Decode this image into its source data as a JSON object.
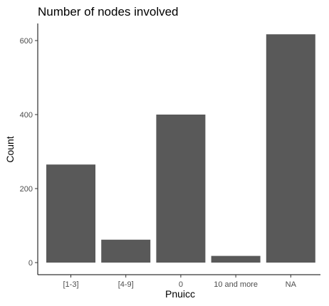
{
  "chart_data": {
    "type": "bar",
    "title": "Number of nodes involved",
    "xlabel": "Pnuicc",
    "ylabel": "Count",
    "categories": [
      "[1-3]",
      "[4-9]",
      "0",
      "10 and more",
      "NA"
    ],
    "values": [
      265,
      62,
      400,
      18,
      617
    ],
    "ylim": [
      0,
      645
    ],
    "yticks": [
      0,
      200,
      400,
      600
    ],
    "grid": false,
    "legend": "none",
    "bar_color": "#595959"
  }
}
